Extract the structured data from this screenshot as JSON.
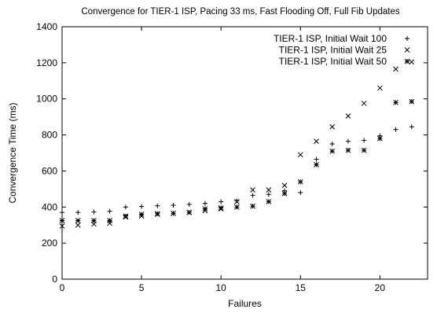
{
  "chart_data": {
    "type": "scatter",
    "title": "Convergence for TIER-1 ISP, Pacing 33 ms, Fast Flooding Off, Full Fib Updates",
    "xlabel": "Failures",
    "ylabel": "Convergence Time (ms)",
    "xlim": [
      0,
      23
    ],
    "ylim": [
      0,
      1400
    ],
    "xticks": [
      0,
      5,
      10,
      15,
      20
    ],
    "yticks": [
      0,
      200,
      400,
      600,
      800,
      1000,
      1200,
      1400
    ],
    "grid": false,
    "legend_position": "top-right",
    "series": [
      {
        "name": "TIER-1 ISP, Initial Wait 100",
        "marker": "plus",
        "x": [
          0,
          1,
          2,
          3,
          4,
          5,
          6,
          7,
          8,
          9,
          10,
          11,
          12,
          13,
          14,
          15,
          16,
          17,
          18,
          19,
          20,
          21,
          22
        ],
        "y": [
          370,
          370,
          373,
          377,
          400,
          403,
          407,
          410,
          415,
          420,
          430,
          435,
          465,
          470,
          490,
          480,
          665,
          750,
          765,
          770,
          795,
          830,
          845
        ]
      },
      {
        "name": "TIER-1 ISP, Initial Wait 25",
        "marker": "cross",
        "x": [
          0,
          1,
          2,
          3,
          4,
          5,
          6,
          7,
          8,
          9,
          10,
          11,
          12,
          13,
          14,
          15,
          16,
          17,
          18,
          19,
          20,
          21,
          22
        ],
        "y": [
          295,
          300,
          305,
          310,
          345,
          350,
          360,
          365,
          370,
          380,
          390,
          430,
          495,
          495,
          520,
          690,
          765,
          845,
          905,
          975,
          1060,
          1165,
          1205
        ]
      },
      {
        "name": "TIER-1 ISP, Initial Wait 50",
        "marker": "star",
        "x": [
          0,
          1,
          2,
          3,
          4,
          5,
          6,
          7,
          8,
          9,
          10,
          11,
          12,
          13,
          14,
          15,
          16,
          17,
          18,
          19,
          20,
          21,
          22
        ],
        "y": [
          325,
          325,
          325,
          325,
          350,
          360,
          363,
          365,
          370,
          390,
          395,
          400,
          405,
          430,
          475,
          540,
          635,
          710,
          715,
          715,
          780,
          980,
          985
        ]
      }
    ]
  }
}
